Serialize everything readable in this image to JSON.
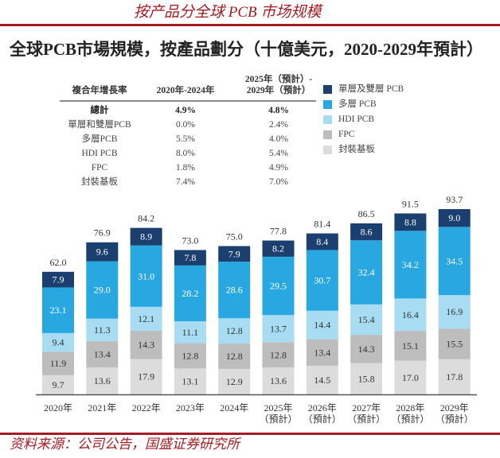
{
  "header": {
    "heading": "按产品分全球 PCB 市场规模",
    "title": "全球PCB市場規模，按產品劃分（十億美元，2020-2029年預計）"
  },
  "table": {
    "header": {
      "metric": "複合年增長率",
      "period1": "2020年-2024年",
      "period2": [
        "2025年（預計）-",
        "2029年（預計）"
      ]
    },
    "rows": [
      {
        "label": "總計",
        "p1": "4.9%",
        "p2": "4.8%"
      },
      {
        "label": "單層和雙層PCB",
        "p1": "0.0%",
        "p2": "2.4%"
      },
      {
        "label": "多層PCB",
        "p1": "5.5%",
        "p2": "4.0%"
      },
      {
        "label": "HDI PCB",
        "p1": "8.0%",
        "p2": "5.4%"
      },
      {
        "label": "FPC",
        "p1": "1.8%",
        "p2": "4.9%"
      },
      {
        "label": "封裝基板",
        "p1": "7.4%",
        "p2": "7.0%"
      }
    ]
  },
  "chart_data": {
    "type": "bar",
    "stacked": true,
    "title": "全球PCB市場規模，按產品劃分（十億美元，2020-2029年預計）",
    "xlabel": "",
    "ylabel": "",
    "unit": "十億美元",
    "ylim": [
      0,
      100
    ],
    "grid": false,
    "legend_position": "top-right",
    "categories": [
      {
        "year": "2020年",
        "note": ""
      },
      {
        "year": "2021年",
        "note": ""
      },
      {
        "year": "2022年",
        "note": ""
      },
      {
        "year": "2023年",
        "note": ""
      },
      {
        "year": "2024年",
        "note": ""
      },
      {
        "year": "2025年",
        "note": "（預計）"
      },
      {
        "year": "2026年",
        "note": "（預計）"
      },
      {
        "year": "2027年",
        "note": "（預計）"
      },
      {
        "year": "2028年",
        "note": "（預計）"
      },
      {
        "year": "2029年",
        "note": "（預計）"
      }
    ],
    "series": [
      {
        "name": "單層及雙層 PCB",
        "color": "#1b3f6e",
        "label_color": "#ffffff",
        "values": [
          7.9,
          9.6,
          8.9,
          7.8,
          7.9,
          8.2,
          8.4,
          8.6,
          8.8,
          9.0
        ]
      },
      {
        "name": "多層 PCB",
        "color": "#29a7e1",
        "label_color": "#ffffff",
        "values": [
          23.1,
          29.0,
          31.0,
          28.2,
          28.6,
          29.5,
          30.7,
          32.4,
          34.2,
          34.5
        ]
      },
      {
        "name": "HDI PCB",
        "color": "#a7dcf2",
        "label_color": "#333333",
        "values": [
          9.4,
          11.3,
          12.1,
          11.1,
          12.8,
          13.7,
          14.4,
          15.4,
          16.4,
          16.9
        ]
      },
      {
        "name": "FPC",
        "color": "#bdbdbd",
        "label_color": "#333333",
        "values": [
          11.9,
          13.4,
          14.3,
          12.8,
          12.8,
          12.8,
          13.4,
          14.3,
          15.1,
          15.5
        ]
      },
      {
        "name": "封裝基板",
        "color": "#dcdcdc",
        "label_color": "#333333",
        "values": [
          9.7,
          13.6,
          17.9,
          13.1,
          12.9,
          13.6,
          14.5,
          15.8,
          17.0,
          17.8
        ]
      }
    ],
    "totals": [
      62.0,
      76.9,
      84.2,
      73.0,
      75.0,
      77.8,
      81.4,
      86.5,
      91.5,
      93.7
    ]
  },
  "footer": {
    "source": "资料来源：公司公告，国盛证券研究所"
  }
}
